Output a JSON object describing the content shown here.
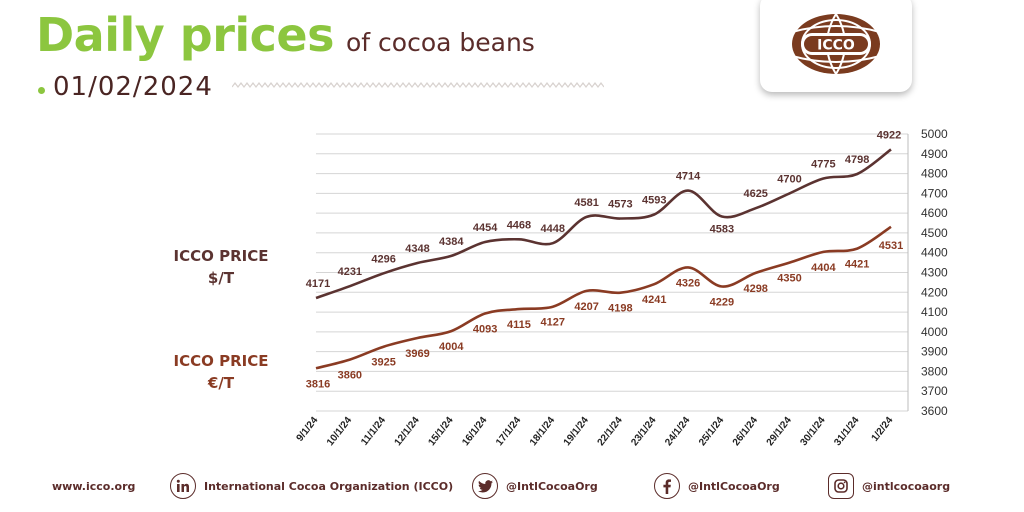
{
  "header": {
    "title_main": "Daily prices",
    "title_sub": "of cocoa beans",
    "date": "01/02/2024"
  },
  "logo": {
    "text": "ICCO"
  },
  "labels": {
    "usd_line1": "ICCO PRICE",
    "usd_line2": "$/T",
    "eur_line1": "ICCO PRICE",
    "eur_line2": "€/T"
  },
  "chart_data": {
    "type": "line",
    "categories": [
      "9/1/24",
      "10/1/24",
      "11/1/24",
      "12/1/24",
      "15/1/24",
      "16/1/24",
      "17/1/24",
      "18/1/24",
      "19/1/24",
      "22/1/24",
      "23/1/24",
      "24/1/24",
      "25/1/24",
      "26/1/24",
      "29/1/24",
      "30/1/24",
      "31/1/24",
      "1/2/24"
    ],
    "series": [
      {
        "name": "ICCO PRICE $/T",
        "color": "#5b3331",
        "values": [
          4171,
          4231,
          4296,
          4348,
          4384,
          4454,
          4468,
          4448,
          4581,
          4573,
          4593,
          4714,
          4583,
          4625,
          4700,
          4775,
          4798,
          4922
        ]
      },
      {
        "name": "ICCO PRICE €/T",
        "color": "#8a3b23",
        "values": [
          3816,
          3860,
          3925,
          3969,
          4004,
          4093,
          4115,
          4127,
          4207,
          4198,
          4241,
          4326,
          4229,
          4298,
          4350,
          4404,
          4421,
          4531
        ]
      }
    ],
    "ylim": [
      3600,
      5000
    ],
    "y_ticks": [
      3600,
      3700,
      3800,
      3900,
      4000,
      4100,
      4200,
      4300,
      4400,
      4500,
      4600,
      4700,
      4800,
      4900,
      5000
    ],
    "grid": true,
    "y_axis_side": "right"
  },
  "footer": {
    "website": "www.icco.org",
    "linkedin": "International Cocoa Organization (ICCO)",
    "twitter": "@IntlCocoaOrg",
    "facebook": "@IntlCocoaOrg",
    "instagram": "@intlcocoaorg"
  },
  "icons": [
    "linkedin-icon",
    "twitter-icon",
    "facebook-icon",
    "instagram-icon"
  ]
}
